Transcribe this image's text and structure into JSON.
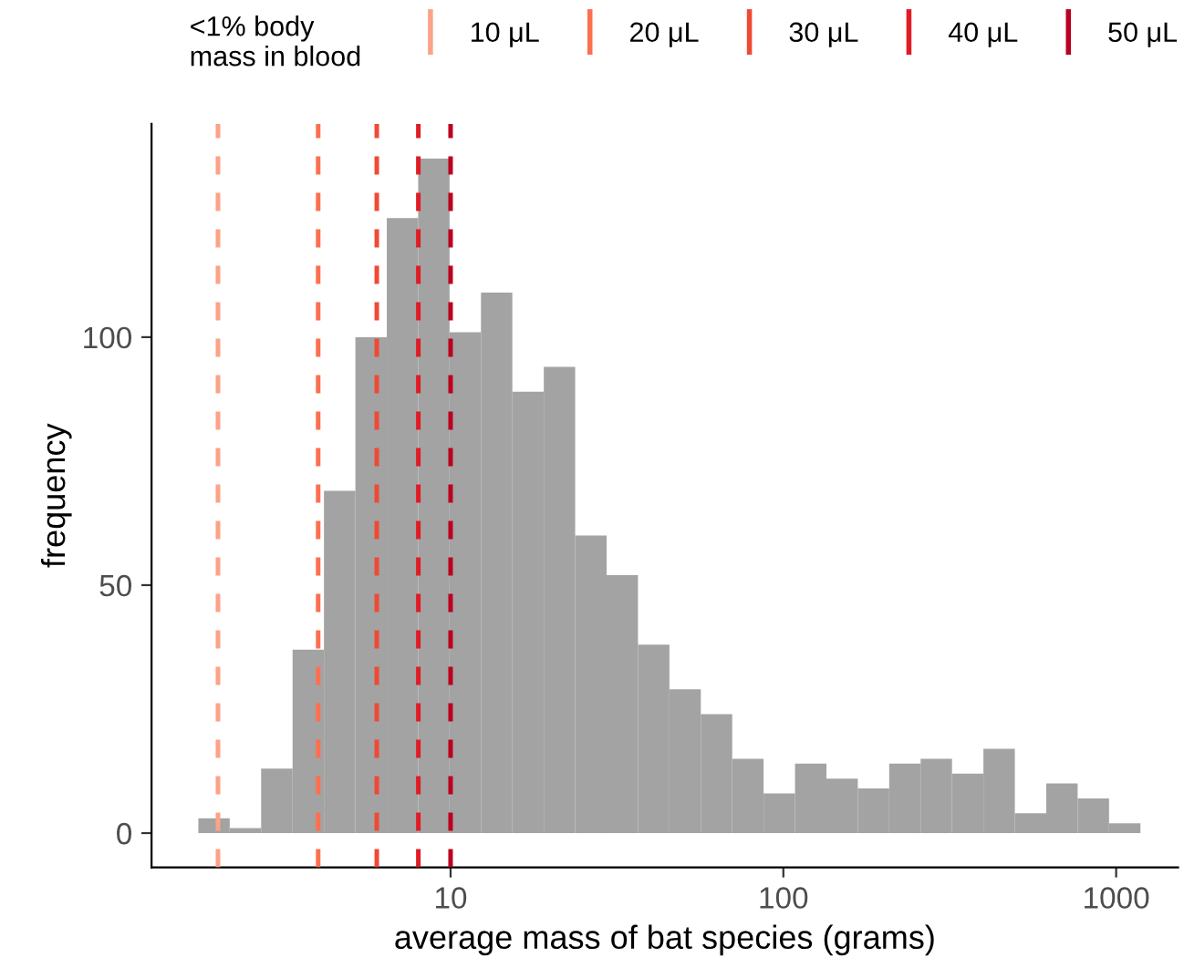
{
  "chart_data": {
    "type": "histogram",
    "xlabel": "average mass of bat species (grams)",
    "ylabel": "frequency",
    "legend_title": "<1% body\nmass in blood",
    "bins": [
      1.746,
      2.169,
      2.696,
      3.351,
      4.164,
      5.175,
      6.431,
      7.991,
      9.93,
      12.34,
      15.33,
      19.06,
      23.68,
      29.43,
      36.57,
      45.45,
      56.48,
      70.19,
      87.22,
      108.4,
      134.7,
      167.4,
      208.0,
      258.5,
      321.2,
      399.2,
      496.1,
      616.5,
      766.1,
      952.1,
      1183
    ],
    "values": [
      3,
      1,
      13,
      37,
      69,
      100,
      124,
      136,
      101,
      109,
      89,
      94,
      60,
      52,
      38,
      29,
      24,
      15,
      8,
      14,
      11,
      9,
      14,
      15,
      12,
      17,
      4,
      10,
      7,
      2
    ],
    "color": "#a3a3a3",
    "log": "x",
    "xlim": [
      1.263,
      1535
    ],
    "xticks": [
      10,
      100,
      1000
    ],
    "ylim": [
      -6.9,
      143
    ],
    "yticks": [
      0,
      50,
      100
    ],
    "grid": false,
    "legend": "top",
    "ref_lines": [
      {
        "axis": "x",
        "value": 2,
        "label": "10 μL",
        "color": "#fca387",
        "line_style": "dashed"
      },
      {
        "axis": "x",
        "value": 4,
        "label": "20 μL",
        "color": "#fc7050",
        "line_style": "dashed"
      },
      {
        "axis": "x",
        "value": 6,
        "label": "30 μL",
        "color": "#ef4a35",
        "line_style": "dashed"
      },
      {
        "axis": "x",
        "value": 8,
        "label": "40 μL",
        "color": "#e01c25",
        "line_style": "dashed"
      },
      {
        "axis": "x",
        "value": 10,
        "label": "50 μL",
        "color": "#bb0020",
        "line_style": "dashed"
      }
    ]
  }
}
